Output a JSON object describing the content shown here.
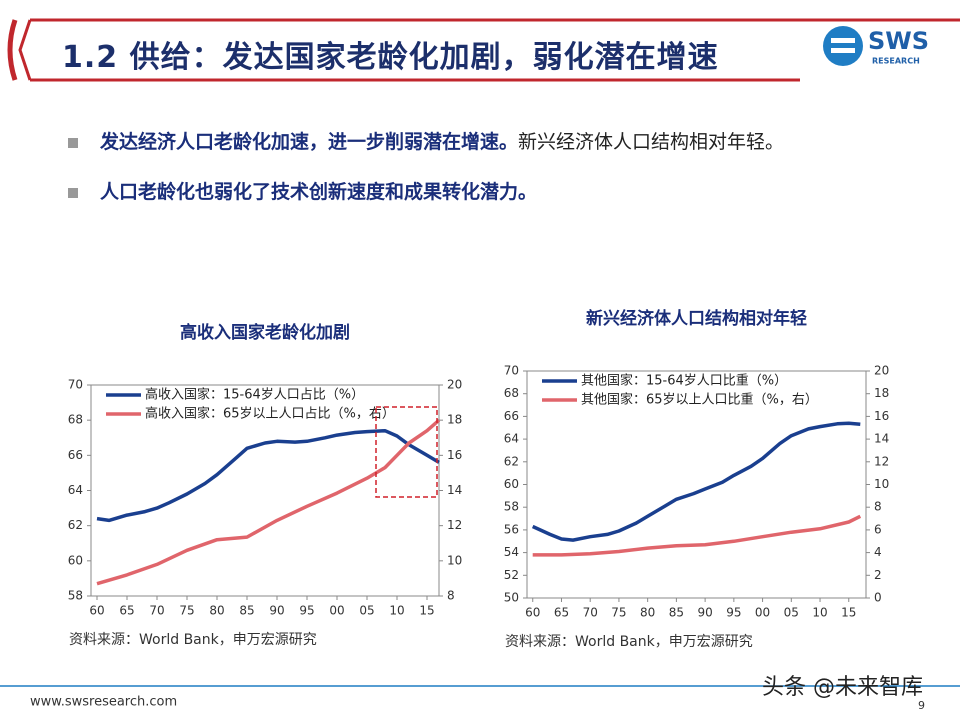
{
  "header": {
    "title": "1.2 供给：发达国家老龄化加剧，弱化潜在增速",
    "logo": "SWS",
    "logo_sub": "RESEARCH"
  },
  "bullets": [
    {
      "bold": "发达经济人口老龄化加速，进一步削弱潜在增速。",
      "text": "新兴经济体人口结构相对年轻。"
    },
    {
      "bold": "人口老龄化也弱化了技术创新速度和成果转化潜力。"
    }
  ],
  "footer": {
    "url": "www.swsresearch.com",
    "page": "9",
    "watermark": "头条 @未来智库"
  },
  "chart_data": [
    {
      "type": "line",
      "title": "高收入国家老龄化加剧",
      "source": "资料来源：World Bank，申万宏源研究",
      "legend": "upper left",
      "xlim": [
        1959,
        2017
      ],
      "ylim": [
        58,
        70
      ],
      "y2lim": [
        8,
        20
      ],
      "xticks": [
        {
          "value": 1960,
          "label": "60"
        },
        {
          "value": 1965,
          "label": "65"
        },
        {
          "value": 1970,
          "label": "70"
        },
        {
          "value": 1975,
          "label": "75"
        },
        {
          "value": 1980,
          "label": "80"
        },
        {
          "value": 1985,
          "label": "85"
        },
        {
          "value": 1990,
          "label": "90"
        },
        {
          "value": 1995,
          "label": "95"
        },
        {
          "value": 2000,
          "label": "00"
        },
        {
          "value": 2005,
          "label": "05"
        },
        {
          "value": 2010,
          "label": "10"
        },
        {
          "value": 2015,
          "label": "15"
        }
      ],
      "yticks": [
        58,
        60,
        62,
        64,
        66,
        68,
        70
      ],
      "y2ticks": [
        8,
        10,
        12,
        14,
        16,
        18,
        20
      ],
      "series": [
        {
          "name": "高收入国家：15-64岁人口占比（%）",
          "color": "#1a3f8f",
          "x": [
            1960,
            1962,
            1965,
            1968,
            1970,
            1972,
            1975,
            1978,
            1980,
            1983,
            1985,
            1988,
            1990,
            1993,
            1995,
            1998,
            2000,
            2003,
            2005,
            2008,
            2010,
            2012,
            2015,
            2017
          ],
          "values": [
            62.4,
            62.3,
            62.6,
            62.8,
            63.0,
            63.3,
            63.8,
            64.4,
            64.9,
            65.8,
            66.4,
            66.7,
            66.8,
            66.75,
            66.8,
            67.0,
            67.15,
            67.3,
            67.35,
            67.4,
            67.1,
            66.6,
            66.0,
            65.6
          ]
        },
        {
          "name": "高收入国家：65岁以上人口占比（%，右）",
          "color": "#e0656b",
          "axis": "y2",
          "x": [
            1960,
            1965,
            1970,
            1975,
            1980,
            1985,
            1990,
            1995,
            2000,
            2005,
            2008,
            2010,
            2012,
            2015,
            2017
          ],
          "values": [
            8.7,
            9.2,
            9.8,
            10.6,
            11.2,
            11.35,
            12.3,
            13.1,
            13.85,
            14.7,
            15.3,
            16.0,
            16.7,
            17.4,
            18.0
          ]
        }
      ]
    },
    {
      "type": "line",
      "title": "新兴经济体人口结构相对年轻",
      "source": "资料来源：World Bank，申万宏源研究",
      "legend": "upper left",
      "xlim": [
        1959,
        2018
      ],
      "ylim": [
        50,
        70
      ],
      "y2lim": [
        0,
        20
      ],
      "xticks": [
        {
          "value": 1960,
          "label": "60"
        },
        {
          "value": 1965,
          "label": "65"
        },
        {
          "value": 1970,
          "label": "70"
        },
        {
          "value": 1975,
          "label": "75"
        },
        {
          "value": 1980,
          "label": "80"
        },
        {
          "value": 1985,
          "label": "85"
        },
        {
          "value": 1990,
          "label": "90"
        },
        {
          "value": 1995,
          "label": "95"
        },
        {
          "value": 2000,
          "label": "00"
        },
        {
          "value": 2005,
          "label": "05"
        },
        {
          "value": 2010,
          "label": "10"
        },
        {
          "value": 2015,
          "label": "15"
        }
      ],
      "yticks": [
        50,
        52,
        54,
        56,
        58,
        60,
        62,
        64,
        66,
        68,
        70
      ],
      "y2ticks": [
        0,
        2,
        4,
        6,
        8,
        10,
        12,
        14,
        16,
        18,
        20
      ],
      "series": [
        {
          "name": "其他国家：15-64岁人口比重（%）",
          "color": "#1a3f8f",
          "x": [
            1960,
            1963,
            1965,
            1967,
            1970,
            1973,
            1975,
            1978,
            1980,
            1983,
            1985,
            1988,
            1990,
            1993,
            1995,
            1998,
            2000,
            2003,
            2005,
            2008,
            2010,
            2013,
            2015,
            2017
          ],
          "values": [
            56.3,
            55.6,
            55.2,
            55.1,
            55.4,
            55.6,
            55.9,
            56.6,
            57.2,
            58.1,
            58.7,
            59.2,
            59.6,
            60.2,
            60.8,
            61.6,
            62.3,
            63.6,
            64.3,
            64.9,
            65.1,
            65.35,
            65.4,
            65.3
          ]
        },
        {
          "name": "其他国家：65岁以上人口比重（%，右）",
          "color": "#e0656b",
          "axis": "y2",
          "x": [
            1960,
            1965,
            1970,
            1975,
            1980,
            1985,
            1990,
            1995,
            2000,
            2005,
            2010,
            2015,
            2017
          ],
          "values": [
            3.8,
            3.8,
            3.9,
            4.1,
            4.4,
            4.6,
            4.7,
            5.0,
            5.4,
            5.8,
            6.1,
            6.7,
            7.2
          ]
        }
      ]
    }
  ]
}
